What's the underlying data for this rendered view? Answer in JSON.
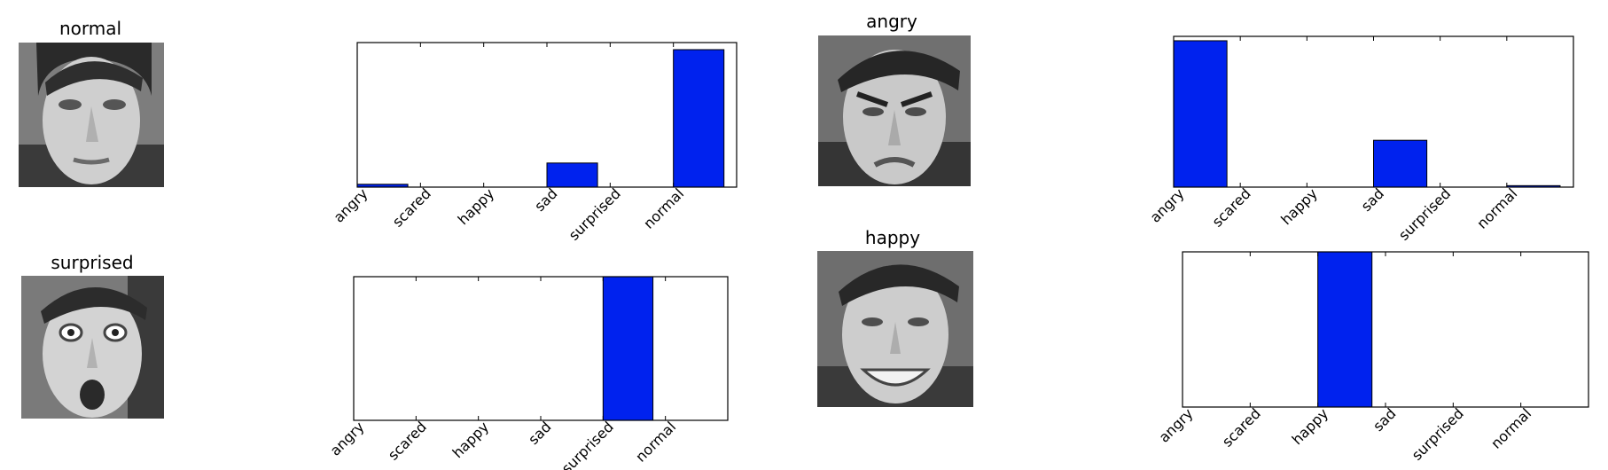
{
  "colors": {
    "bar": "#0022ee",
    "bar_edge": "#000000",
    "frame": "#000000"
  },
  "panels": [
    {
      "title": "normal",
      "face_description": "grayscale face"
    },
    {
      "title": "angry",
      "face_description": "grayscale face"
    },
    {
      "title": "surprised",
      "face_description": "grayscale face"
    },
    {
      "title": "happy",
      "face_description": "grayscale face"
    }
  ],
  "chart_data": [
    {
      "type": "bar",
      "title": "",
      "xlabel": "",
      "ylabel": "",
      "categories": [
        "angry",
        "scared",
        "happy",
        "sad",
        "surprised",
        "normal"
      ],
      "values": [
        0.02,
        0.0,
        0.0,
        0.17,
        0.0,
        0.97
      ],
      "ylim": [
        0,
        1.02
      ],
      "grid": false
    },
    {
      "type": "bar",
      "title": "",
      "xlabel": "",
      "ylabel": "",
      "categories": [
        "angry",
        "scared",
        "happy",
        "sad",
        "surprised",
        "normal"
      ],
      "values": [
        1.0,
        0.0,
        0.0,
        0.32,
        0.0,
        0.01
      ],
      "ylim": [
        0,
        1.03
      ],
      "grid": false
    },
    {
      "type": "bar",
      "title": "",
      "xlabel": "",
      "ylabel": "",
      "categories": [
        "angry",
        "scared",
        "happy",
        "sad",
        "surprised",
        "normal"
      ],
      "values": [
        0.0,
        0.0,
        0.0,
        0.0,
        1.0,
        0.0
      ],
      "ylim": [
        0,
        1.0
      ],
      "grid": false
    },
    {
      "type": "bar",
      "title": "",
      "xlabel": "",
      "ylabel": "",
      "categories": [
        "angry",
        "scared",
        "happy",
        "sad",
        "surprised",
        "normal"
      ],
      "values": [
        0.0,
        0.0,
        1.0,
        0.0,
        0.0,
        0.0
      ],
      "ylim": [
        0,
        1.0
      ],
      "grid": false
    }
  ]
}
